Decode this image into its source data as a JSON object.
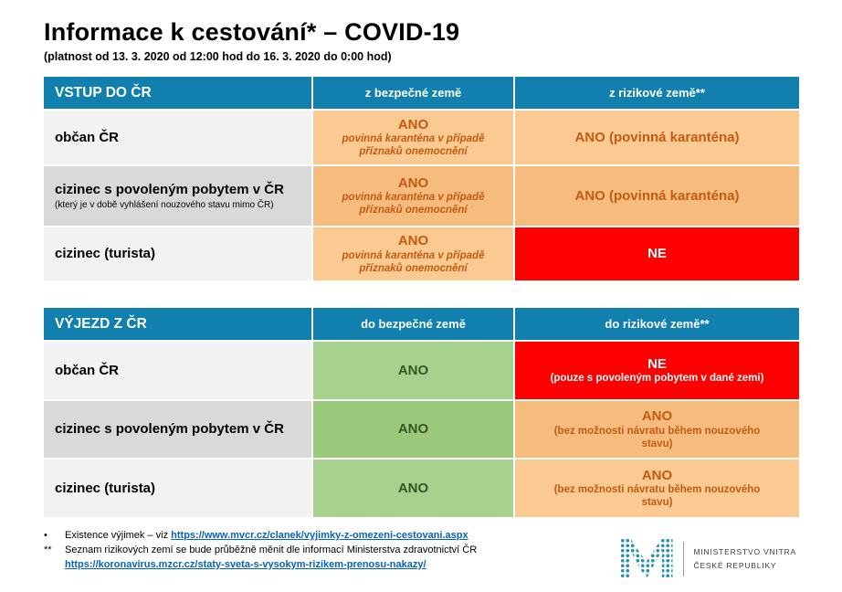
{
  "page": {
    "title": "Informace k cestování* – COVID-19",
    "subtitle": "(platnost od 13. 3. 2020 od 12:00 hod do 16. 3. 2020 do 0:00 hod)"
  },
  "entry_table": {
    "header": {
      "title": "VSTUP DO ČR",
      "col_safe": "z bezpečné země",
      "col_risk": "z rizikové země**"
    },
    "rows": [
      {
        "label": "občan ČR",
        "safe_main": "ANO",
        "safe_note": "povinná karanténa v případě příznaků onemocnění",
        "risk_main": "ANO (povinná karanténa)"
      },
      {
        "label": "cizinec s povoleným pobytem v ČR",
        "label_note": "(který je v době vyhlášení nouzového stavu mimo ČR)",
        "safe_main": "ANO",
        "safe_note": "povinná karanténa v případě příznaků onemocnění",
        "risk_main": "ANO (povinná karanténa)"
      },
      {
        "label": "cizinec (turista)",
        "safe_main": "ANO",
        "safe_note": "povinná karanténa v případě příznaků onemocnění",
        "risk_main": "NE"
      }
    ]
  },
  "exit_table": {
    "header": {
      "title": "VÝJEZD Z ČR",
      "col_safe": "do bezpečné země",
      "col_risk": "do rizikové země**"
    },
    "rows": [
      {
        "label": "občan ČR",
        "safe_main": "ANO",
        "risk_main": "NE",
        "risk_note": "(pouze s povoleným pobytem v dané zemi)"
      },
      {
        "label": "cizinec s povoleným pobytem v ČR",
        "safe_main": "ANO",
        "risk_main": "ANO",
        "risk_note": "(bez možnosti návratu během nouzového stavu)"
      },
      {
        "label": "cizinec (turista)",
        "safe_main": "ANO",
        "risk_main": "ANO",
        "risk_note": "(bez možnosti návratu během nouzového stavu)"
      }
    ]
  },
  "footnotes": {
    "line1_marker": "•",
    "line1_text": "Existence výjimek – viz",
    "line1_link": "https://www.mvcr.cz/clanek/vyjimky-z-omezeni-cestovani.aspx",
    "line2_marker": "**",
    "line2_text": "Seznam rizikových zemí se bude průběžně měnit dle informací Ministerstva zdravotnictví ČR",
    "line3_link": "https://koronavirus.mzcr.cz/staty-sveta-s-vysokym-rizikem-prenosu-nakazy/"
  },
  "logo": {
    "line1": "MINISTERSTVO VNITRA",
    "line2": "ČESKÉ REPUBLIKY"
  },
  "colors": {
    "header_blue": "#1180AE",
    "orange_bg": "#FACA92",
    "orange_bg_alt": "#F5BC7E",
    "orange_text": "#C55A11",
    "red_bg": "#FE0000",
    "green_bg": "#A6D28E",
    "green_bg_alt": "#9BC97C",
    "green_text": "#375623",
    "label_bg_light": "#F2F2F2",
    "label_bg_dark": "#D9D9D9",
    "link_blue": "#0563C1",
    "logo_teal": "#2191B5"
  }
}
